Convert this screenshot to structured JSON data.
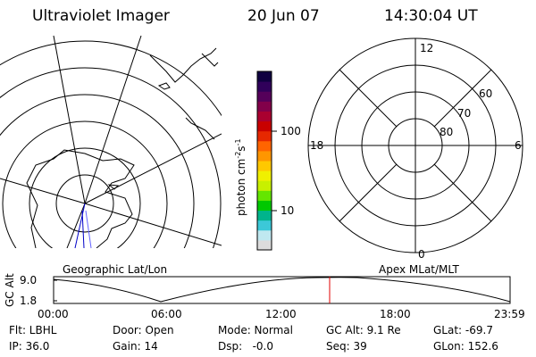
{
  "header": {
    "title": "Ultraviolet Imager",
    "date": "20 Jun 07",
    "time": "14:30:04 UT"
  },
  "geo_panel": {
    "label": "Geographic Lat/Lon"
  },
  "apex_panel": {
    "label": "Apex MLat/MLT",
    "mlt_labels": [
      "12",
      "18",
      "6",
      "0"
    ],
    "lat_labels": [
      "60",
      "70",
      "80"
    ]
  },
  "colorbar": {
    "unit_label": "photon cm",
    "unit_sup1": "-2",
    "unit_mid": "s",
    "unit_sup2": "-1",
    "ticks": [
      "100",
      "10"
    ],
    "colors": [
      "#dcdcdc",
      "#bfe8f0",
      "#3cc8d8",
      "#00b48c",
      "#00c800",
      "#64e600",
      "#c8f000",
      "#f0f000",
      "#ffc800",
      "#ff9600",
      "#ff6400",
      "#e62800",
      "#c80000",
      "#aa0030",
      "#82004a",
      "#55005a",
      "#30005a",
      "#100040"
    ]
  },
  "timeline": {
    "y_axis_label": "GC Alt",
    "y_ticks": [
      "9.0",
      "1.8"
    ],
    "x_ticks": [
      "00:00",
      "06:00",
      "12:00",
      "18:00",
      "23:59"
    ],
    "marker_time": "14:30",
    "marker_color": "#e00000"
  },
  "info": {
    "flt": "Flt: LBHL",
    "ip": "IP: 36.0",
    "door": "Door: Open",
    "gain": "Gain: 14",
    "mode": "Mode: Normal",
    "dsp": "Dsp:   -0.0",
    "gcalt": "GC Alt: 9.1 Re",
    "seq": "Seq: 39",
    "glat": "GLat: -69.7",
    "glon": "GLon: 152.6"
  }
}
